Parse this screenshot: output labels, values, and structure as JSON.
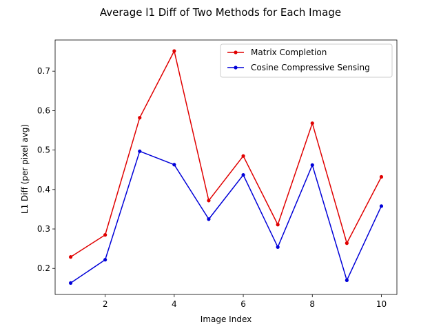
{
  "chart_data": {
    "type": "line",
    "title": "Average l1 Diff of Two Methods for Each Image",
    "xlabel": "Image Index",
    "ylabel": "L1 Diff (per pixel avg)",
    "x": [
      1,
      2,
      3,
      4,
      5,
      6,
      7,
      8,
      9,
      10
    ],
    "xlim": [
      0.55,
      10.45
    ],
    "ylim": [
      0.134,
      0.779
    ],
    "xticks": [
      2,
      4,
      6,
      8,
      10
    ],
    "yticks": [
      0.2,
      0.3,
      0.4,
      0.5,
      0.6,
      0.7
    ],
    "ytick_labels": [
      "0.2",
      "0.3",
      "0.4",
      "0.5",
      "0.6",
      "0.7"
    ],
    "grid": false,
    "legend_position": "upper right",
    "series": [
      {
        "name": "Matrix Completion",
        "color": "#e00000",
        "marker": "point",
        "values": [
          0.229,
          0.285,
          0.582,
          0.751,
          0.372,
          0.485,
          0.311,
          0.568,
          0.264,
          0.432
        ]
      },
      {
        "name": "Cosine Compressive Sensing",
        "color": "#0000d8",
        "marker": "point",
        "values": [
          0.163,
          0.222,
          0.497,
          0.463,
          0.325,
          0.437,
          0.254,
          0.462,
          0.17,
          0.358
        ]
      }
    ]
  }
}
